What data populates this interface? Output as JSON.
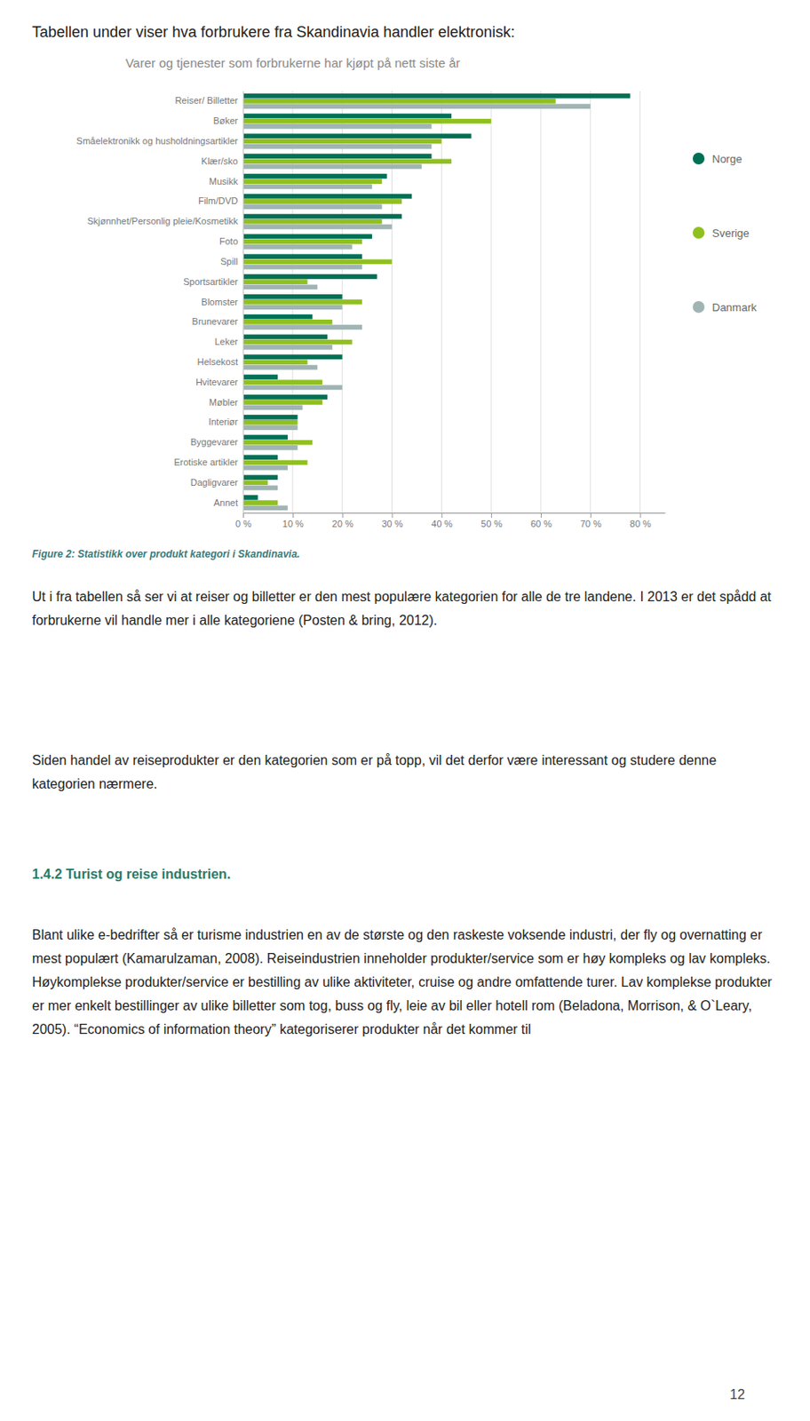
{
  "heading": "Tabellen under viser hva forbrukere fra Skandinavia handler elektronisk:",
  "chart_data": {
    "type": "bar",
    "orientation": "horizontal",
    "title": "Varer og tjenester som forbrukerne har kjøpt på nett siste år",
    "categories": [
      "Reiser/ Billetter",
      "Bøker",
      "Småelektronikk og husholdningsartikler",
      "Klær/sko",
      "Musikk",
      "Film/DVD",
      "Skjønnhet/Personlig pleie/Kosmetikk",
      "Foto",
      "Spill",
      "Sportsartikler",
      "Blomster",
      "Brunevarer",
      "Leker",
      "Helsekost",
      "Hvitevarer",
      "Møbler",
      "Interiør",
      "Byggevarer",
      "Erotiske artikler",
      "Dagligvarer",
      "Annet"
    ],
    "series": [
      {
        "name": "Norge",
        "color": "#007055",
        "values": [
          78,
          42,
          46,
          38,
          29,
          34,
          32,
          26,
          24,
          27,
          20,
          14,
          17,
          20,
          7,
          17,
          11,
          9,
          7,
          7,
          3
        ]
      },
      {
        "name": "Sverige",
        "color": "#90c020",
        "values": [
          63,
          50,
          40,
          42,
          28,
          32,
          28,
          24,
          30,
          13,
          24,
          18,
          22,
          13,
          16,
          16,
          11,
          14,
          13,
          5,
          7
        ]
      },
      {
        "name": "Danmark",
        "color": "#a0b4b4",
        "values": [
          70,
          38,
          38,
          36,
          26,
          28,
          30,
          22,
          24,
          15,
          20,
          24,
          18,
          15,
          20,
          12,
          11,
          11,
          9,
          7,
          9
        ]
      }
    ],
    "xlim": [
      0,
      85
    ],
    "xticks": [
      {
        "value": 0,
        "label": "0 %"
      },
      {
        "value": 10,
        "label": "10 %"
      },
      {
        "value": 20,
        "label": "20 %"
      },
      {
        "value": 30,
        "label": "30 %"
      },
      {
        "value": 40,
        "label": "40 %"
      },
      {
        "value": 50,
        "label": "50 %"
      },
      {
        "value": 60,
        "label": "60 %"
      },
      {
        "value": 70,
        "label": "70 %"
      },
      {
        "value": 80,
        "label": "80 %"
      }
    ],
    "grid": true,
    "legend": "right"
  },
  "caption": "Figure 2: Statistikk over produkt kategori i Skandinavia.",
  "paragraphs": [
    "Ut i fra tabellen så ser vi at reiser og billetter er den mest populære kategorien for alle de tre landene. I 2013 er det spådd at forbrukerne vil handle mer i alle kategoriene (Posten & bring, 2012).",
    "Siden handel av reiseprodukter er den kategorien som er på topp, vil det derfor være interessant og studere denne kategorien nærmere.",
    "Blant ulike e-bedrifter så er turisme industrien en av de største og den raskeste voksende industri, der fly og overnatting er mest populært (Kamarulzaman, 2008). Reiseindustrien inneholder produkter/service som er høy kompleks og lav kompleks. Høykomplekse produkter/service er bestilling av ulike aktiviteter, cruise og andre omfattende turer. Lav komplekse produkter er mer enkelt bestillinger av ulike billetter som tog, buss og fly, leie av bil eller hotell rom (Beladona, Morrison, & O`Leary, 2005). “Economics of information theory” kategoriserer produkter når det kommer til"
  ],
  "subheading": "1.4.2 Turist og reise industrien.",
  "page_number": "12"
}
